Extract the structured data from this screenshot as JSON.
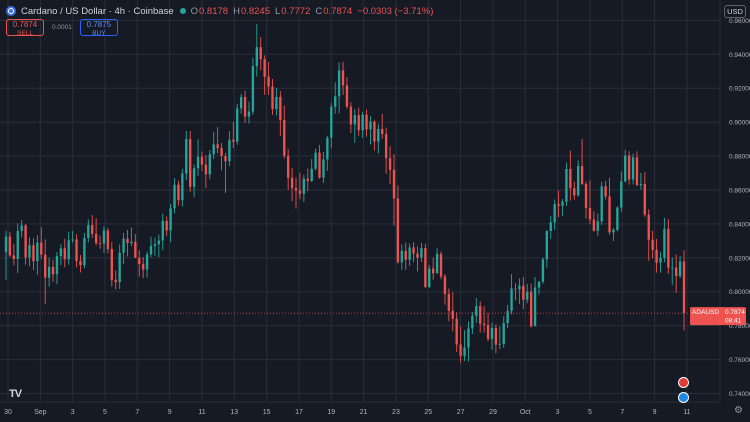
{
  "header": {
    "title": "Cardano / US Dollar · 4h · Coinbase",
    "o_label": "O",
    "o": "0.8178",
    "h_label": "H",
    "h": "0.8245",
    "l_label": "L",
    "l": "0.7772",
    "c_label": "C",
    "c": "0.7874",
    "change": "−0.0303 (−3.71%)"
  },
  "trade": {
    "sell_price": "0.7874",
    "sell_label": "SELL",
    "spread": "0.0001",
    "buy_price": "0.7875",
    "buy_label": "BUY"
  },
  "currency_button": "USD",
  "symbol_tag": {
    "symbol": "ADAUSD",
    "price": "0.7874",
    "countdown": "08:41"
  },
  "colors": {
    "up": "#26a69a",
    "down": "#ef5350",
    "background": "#161a25",
    "grid": "#2a2e39"
  },
  "icons": [
    "tradingview-logo-icon",
    "settings-gear-icon",
    "event-marker-icon",
    "earnings-marker-icon"
  ],
  "chart_data": {
    "type": "candlestick",
    "y_axis": {
      "range": [
        0.735,
        0.972
      ],
      "position": "right",
      "ticks": [
        0.74,
        0.76,
        0.78,
        0.8,
        0.82,
        0.84,
        0.86,
        0.88,
        0.9,
        0.92,
        0.94,
        0.96
      ],
      "tick_labels": [
        "0.74000",
        "0.76000",
        "0.78000",
        "0.80000",
        "0.82000",
        "0.84000",
        "0.86000",
        "0.88000",
        "0.90000",
        "0.92000",
        "0.94000",
        "0.96000"
      ]
    },
    "x_axis": {
      "tick_labels": [
        "30",
        "Sep",
        "3",
        "5",
        "7",
        "9",
        "11",
        "13",
        "15",
        "17",
        "19",
        "21",
        "23",
        "25",
        "27",
        "29",
        "Oct",
        "3",
        "5",
        "7",
        "9",
        "11"
      ]
    },
    "grid": true,
    "current_price": 0.7874,
    "ohlc": [
      [
        0.8233,
        0.8358,
        0.807,
        0.8325
      ],
      [
        0.8325,
        0.8353,
        0.8206,
        0.8214
      ],
      [
        0.8214,
        0.8284,
        0.8155,
        0.8193
      ],
      [
        0.8193,
        0.8404,
        0.811,
        0.8358
      ],
      [
        0.8358,
        0.8422,
        0.832,
        0.8392
      ],
      [
        0.8392,
        0.84,
        0.816,
        0.8201
      ],
      [
        0.8201,
        0.832,
        0.8151,
        0.8275
      ],
      [
        0.8275,
        0.8316,
        0.8129,
        0.818
      ],
      [
        0.818,
        0.8333,
        0.81,
        0.829
      ],
      [
        0.829,
        0.8381,
        0.8192,
        0.8219
      ],
      [
        0.8219,
        0.8309,
        0.7927,
        0.8083
      ],
      [
        0.8083,
        0.8202,
        0.803,
        0.8147
      ],
      [
        0.8147,
        0.8189,
        0.8058,
        0.8103
      ],
      [
        0.8103,
        0.8234,
        0.8045,
        0.8211
      ],
      [
        0.8211,
        0.828,
        0.8157,
        0.8256
      ],
      [
        0.8256,
        0.8312,
        0.8145,
        0.8192
      ],
      [
        0.8192,
        0.8354,
        0.816,
        0.8303
      ],
      [
        0.8303,
        0.8359,
        0.8289,
        0.8308
      ],
      [
        0.8308,
        0.8339,
        0.8144,
        0.8181
      ],
      [
        0.8181,
        0.8217,
        0.8114,
        0.8156
      ],
      [
        0.8156,
        0.8347,
        0.8138,
        0.8317
      ],
      [
        0.8317,
        0.8427,
        0.8291,
        0.8393
      ],
      [
        0.8393,
        0.8452,
        0.8318,
        0.8341
      ],
      [
        0.8341,
        0.8434,
        0.8274,
        0.8286
      ],
      [
        0.8286,
        0.8331,
        0.8253,
        0.8284
      ],
      [
        0.8284,
        0.8386,
        0.823,
        0.8362
      ],
      [
        0.8362,
        0.8376,
        0.8226,
        0.8252
      ],
      [
        0.8252,
        0.8292,
        0.803,
        0.8071
      ],
      [
        0.8071,
        0.8126,
        0.8014,
        0.8057
      ],
      [
        0.8057,
        0.8279,
        0.8016,
        0.823
      ],
      [
        0.823,
        0.8347,
        0.8162,
        0.8313
      ],
      [
        0.8313,
        0.8364,
        0.8208,
        0.8287
      ],
      [
        0.8287,
        0.8379,
        0.8268,
        0.8295
      ],
      [
        0.8295,
        0.834,
        0.82,
        0.82
      ],
      [
        0.82,
        0.8245,
        0.809,
        0.8164
      ],
      [
        0.8164,
        0.8205,
        0.808,
        0.8131
      ],
      [
        0.8131,
        0.8236,
        0.8084,
        0.822
      ],
      [
        0.822,
        0.8324,
        0.8203,
        0.8271
      ],
      [
        0.8271,
        0.8318,
        0.8211,
        0.8281
      ],
      [
        0.8281,
        0.8336,
        0.8204,
        0.8302
      ],
      [
        0.8302,
        0.8461,
        0.8245,
        0.8418
      ],
      [
        0.8418,
        0.8444,
        0.8327,
        0.8361
      ],
      [
        0.8361,
        0.8518,
        0.8293,
        0.8492
      ],
      [
        0.8492,
        0.867,
        0.8462,
        0.8631
      ],
      [
        0.8631,
        0.8655,
        0.8508,
        0.854
      ],
      [
        0.854,
        0.8724,
        0.8503,
        0.8697
      ],
      [
        0.8697,
        0.8948,
        0.8658,
        0.89
      ],
      [
        0.89,
        0.8948,
        0.8589,
        0.8619
      ],
      [
        0.8619,
        0.875,
        0.8557,
        0.8728
      ],
      [
        0.8728,
        0.8898,
        0.8683,
        0.8796
      ],
      [
        0.8796,
        0.8827,
        0.8711,
        0.8749
      ],
      [
        0.8749,
        0.8806,
        0.8611,
        0.8692
      ],
      [
        0.8692,
        0.8835,
        0.8663,
        0.881
      ],
      [
        0.881,
        0.8943,
        0.8782,
        0.8869
      ],
      [
        0.8869,
        0.897,
        0.8815,
        0.8847
      ],
      [
        0.8847,
        0.8878,
        0.8716,
        0.88
      ],
      [
        0.88,
        0.8818,
        0.8583,
        0.8769
      ],
      [
        0.8769,
        0.8948,
        0.874,
        0.8896
      ],
      [
        0.8896,
        0.9002,
        0.8847,
        0.8885
      ],
      [
        0.8885,
        0.9108,
        0.8867,
        0.9081
      ],
      [
        0.9081,
        0.9166,
        0.9048,
        0.9148
      ],
      [
        0.9148,
        0.9185,
        0.8996,
        0.9033
      ],
      [
        0.9033,
        0.912,
        0.8991,
        0.9062
      ],
      [
        0.9062,
        0.9379,
        0.9044,
        0.933
      ],
      [
        0.933,
        0.9579,
        0.9269,
        0.9442
      ],
      [
        0.9442,
        0.9501,
        0.9306,
        0.9371
      ],
      [
        0.9371,
        0.9394,
        0.916,
        0.9268
      ],
      [
        0.9268,
        0.9355,
        0.9161,
        0.921
      ],
      [
        0.921,
        0.9254,
        0.9043,
        0.9077
      ],
      [
        0.9077,
        0.9201,
        0.9039,
        0.9149
      ],
      [
        0.9149,
        0.9183,
        0.892,
        0.9013
      ],
      [
        0.9013,
        0.9098,
        0.8785,
        0.8801
      ],
      [
        0.8801,
        0.884,
        0.8601,
        0.8672
      ],
      [
        0.8672,
        0.873,
        0.8534,
        0.8611
      ],
      [
        0.8611,
        0.8673,
        0.849,
        0.8596
      ],
      [
        0.8596,
        0.8702,
        0.8546,
        0.8578
      ],
      [
        0.8578,
        0.869,
        0.8529,
        0.8667
      ],
      [
        0.8667,
        0.8727,
        0.8593,
        0.8653
      ],
      [
        0.8653,
        0.8782,
        0.8647,
        0.8725
      ],
      [
        0.8725,
        0.8844,
        0.8715,
        0.882
      ],
      [
        0.882,
        0.8865,
        0.8666,
        0.8673
      ],
      [
        0.8673,
        0.8824,
        0.8641,
        0.878
      ],
      [
        0.878,
        0.8919,
        0.8713,
        0.8908
      ],
      [
        0.8908,
        0.9113,
        0.8844,
        0.9091
      ],
      [
        0.9091,
        0.9235,
        0.905,
        0.9152
      ],
      [
        0.9152,
        0.9352,
        0.9052,
        0.9305
      ],
      [
        0.9305,
        0.9356,
        0.916,
        0.9217
      ],
      [
        0.9217,
        0.9265,
        0.908,
        0.9091
      ],
      [
        0.9091,
        0.9117,
        0.8936,
        0.8987
      ],
      [
        0.8987,
        0.9077,
        0.8878,
        0.9041
      ],
      [
        0.9041,
        0.9085,
        0.8919,
        0.8952
      ],
      [
        0.8952,
        0.9061,
        0.8906,
        0.9044
      ],
      [
        0.9044,
        0.9075,
        0.8914,
        0.8957
      ],
      [
        0.8957,
        0.9035,
        0.8869,
        0.9003
      ],
      [
        0.9003,
        0.901,
        0.8832,
        0.8886
      ],
      [
        0.8886,
        0.8991,
        0.8814,
        0.896
      ],
      [
        0.896,
        0.9048,
        0.8902,
        0.893
      ],
      [
        0.893,
        0.8968,
        0.8696,
        0.8788
      ],
      [
        0.8788,
        0.8857,
        0.8635,
        0.8719
      ],
      [
        0.8719,
        0.8811,
        0.839,
        0.855
      ],
      [
        0.855,
        0.8626,
        0.8166,
        0.8174
      ],
      [
        0.8174,
        0.828,
        0.8129,
        0.8241
      ],
      [
        0.8241,
        0.829,
        0.813,
        0.8188
      ],
      [
        0.8188,
        0.8284,
        0.8153,
        0.8261
      ],
      [
        0.8261,
        0.8292,
        0.8174,
        0.8225
      ],
      [
        0.8225,
        0.8269,
        0.812,
        0.8201
      ],
      [
        0.8201,
        0.8287,
        0.8175,
        0.8258
      ],
      [
        0.8258,
        0.8283,
        0.8023,
        0.8028
      ],
      [
        0.8028,
        0.8157,
        0.8022,
        0.8137
      ],
      [
        0.8137,
        0.8202,
        0.807,
        0.8109
      ],
      [
        0.8109,
        0.8257,
        0.8106,
        0.8223
      ],
      [
        0.8223,
        0.8237,
        0.8074,
        0.809
      ],
      [
        0.809,
        0.8104,
        0.7924,
        0.7987
      ],
      [
        0.7987,
        0.8019,
        0.7826,
        0.7888
      ],
      [
        0.7888,
        0.7997,
        0.7767,
        0.7841
      ],
      [
        0.7841,
        0.788,
        0.7645,
        0.7689
      ],
      [
        0.7689,
        0.7795,
        0.7582,
        0.7621
      ],
      [
        0.7621,
        0.7774,
        0.7592,
        0.7671
      ],
      [
        0.7671,
        0.7826,
        0.7589,
        0.7784
      ],
      [
        0.7784,
        0.788,
        0.7751,
        0.7858
      ],
      [
        0.7858,
        0.7963,
        0.7817,
        0.7915
      ],
      [
        0.7915,
        0.7943,
        0.7759,
        0.7811
      ],
      [
        0.7811,
        0.7914,
        0.7759,
        0.7804
      ],
      [
        0.7804,
        0.7875,
        0.7708,
        0.7722
      ],
      [
        0.7722,
        0.7818,
        0.7658,
        0.7787
      ],
      [
        0.7787,
        0.7809,
        0.7636,
        0.7688
      ],
      [
        0.7688,
        0.7797,
        0.7661,
        0.7693
      ],
      [
        0.7693,
        0.7856,
        0.767,
        0.7815
      ],
      [
        0.7815,
        0.7923,
        0.7785,
        0.7887
      ],
      [
        0.7887,
        0.8104,
        0.7868,
        0.8019
      ],
      [
        0.8019,
        0.805,
        0.795,
        0.8014
      ],
      [
        0.8014,
        0.8079,
        0.7928,
        0.8036
      ],
      [
        0.8036,
        0.8087,
        0.7898,
        0.7953
      ],
      [
        0.7953,
        0.8047,
        0.7932,
        0.8
      ],
      [
        0.8,
        0.8047,
        0.7789,
        0.7797
      ],
      [
        0.7797,
        0.8087,
        0.7796,
        0.8025
      ],
      [
        0.8025,
        0.8062,
        0.7983,
        0.806
      ],
      [
        0.806,
        0.8202,
        0.8047,
        0.8191
      ],
      [
        0.8191,
        0.8362,
        0.8143,
        0.8358
      ],
      [
        0.8358,
        0.8447,
        0.8312,
        0.8409
      ],
      [
        0.8409,
        0.8544,
        0.8365,
        0.8516
      ],
      [
        0.8516,
        0.8597,
        0.844,
        0.8507
      ],
      [
        0.8507,
        0.8546,
        0.8447,
        0.8531
      ],
      [
        0.8531,
        0.8761,
        0.8505,
        0.8724
      ],
      [
        0.8724,
        0.8832,
        0.8537,
        0.861
      ],
      [
        0.861,
        0.8649,
        0.8542,
        0.8568
      ],
      [
        0.8568,
        0.8773,
        0.8561,
        0.8741
      ],
      [
        0.8741,
        0.8901,
        0.8628,
        0.8635
      ],
      [
        0.8635,
        0.865,
        0.8432,
        0.8494
      ],
      [
        0.8494,
        0.8657,
        0.8399,
        0.8426
      ],
      [
        0.8426,
        0.8474,
        0.8355,
        0.8359
      ],
      [
        0.8359,
        0.8461,
        0.8328,
        0.8415
      ],
      [
        0.8415,
        0.8649,
        0.8393,
        0.8622
      ],
      [
        0.8622,
        0.8654,
        0.8545,
        0.8562
      ],
      [
        0.8562,
        0.8672,
        0.8337,
        0.835
      ],
      [
        0.835,
        0.8376,
        0.8299,
        0.8365
      ],
      [
        0.8365,
        0.8504,
        0.8356,
        0.8496
      ],
      [
        0.8496,
        0.871,
        0.8471,
        0.8651
      ],
      [
        0.8651,
        0.8837,
        0.8646,
        0.8803
      ],
      [
        0.8803,
        0.8829,
        0.8631,
        0.8662
      ],
      [
        0.8662,
        0.8815,
        0.8633,
        0.8792
      ],
      [
        0.8792,
        0.8828,
        0.8626,
        0.8628
      ],
      [
        0.8628,
        0.87,
        0.8602,
        0.8636
      ],
      [
        0.8636,
        0.8705,
        0.8442,
        0.8455
      ],
      [
        0.8455,
        0.8486,
        0.8182,
        0.8307
      ],
      [
        0.8307,
        0.836,
        0.8195,
        0.8247
      ],
      [
        0.8247,
        0.8312,
        0.8113,
        0.8172
      ],
      [
        0.8172,
        0.8236,
        0.8113,
        0.82
      ],
      [
        0.82,
        0.8436,
        0.8174,
        0.8371
      ],
      [
        0.8371,
        0.8428,
        0.8106,
        0.8142
      ],
      [
        0.8142,
        0.8204,
        0.8041,
        0.8142
      ],
      [
        0.8142,
        0.8219,
        0.7994,
        0.8092
      ],
      [
        0.8092,
        0.8212,
        0.8081,
        0.8178
      ],
      [
        0.8178,
        0.8245,
        0.7772,
        0.7874
      ]
    ]
  }
}
